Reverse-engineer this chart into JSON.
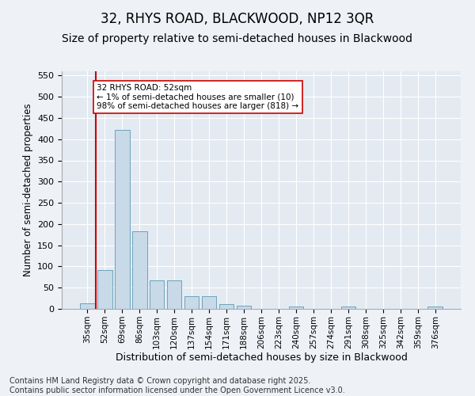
{
  "title": "32, RHYS ROAD, BLACKWOOD, NP12 3QR",
  "subtitle": "Size of property relative to semi-detached houses in Blackwood",
  "xlabel": "Distribution of semi-detached houses by size in Blackwood",
  "ylabel": "Number of semi-detached properties",
  "categories": [
    "35sqm",
    "52sqm",
    "69sqm",
    "86sqm",
    "103sqm",
    "120sqm",
    "137sqm",
    "154sqm",
    "171sqm",
    "188sqm",
    "206sqm",
    "223sqm",
    "240sqm",
    "257sqm",
    "274sqm",
    "291sqm",
    "308sqm",
    "325sqm",
    "342sqm",
    "359sqm",
    "376sqm"
  ],
  "values": [
    14,
    92,
    422,
    183,
    68,
    68,
    30,
    30,
    11,
    7,
    0,
    0,
    5,
    0,
    0,
    5,
    0,
    0,
    0,
    0,
    5
  ],
  "bar_color": "#c8d9e8",
  "bar_edge_color": "#5a9ab5",
  "vline_color": "#cc0000",
  "annotation_text": "32 RHYS ROAD: 52sqm\n← 1% of semi-detached houses are smaller (10)\n98% of semi-detached houses are larger (818) →",
  "annotation_box_color": "#ffffff",
  "annotation_box_edge_color": "#cc0000",
  "ylim": [
    0,
    560
  ],
  "yticks": [
    0,
    50,
    100,
    150,
    200,
    250,
    300,
    350,
    400,
    450,
    500,
    550
  ],
  "background_color": "#eef2f7",
  "plot_background_color": "#e4eaf2",
  "footer": "Contains HM Land Registry data © Crown copyright and database right 2025.\nContains public sector information licensed under the Open Government Licence v3.0.",
  "title_fontsize": 12,
  "subtitle_fontsize": 10,
  "xlabel_fontsize": 9,
  "ylabel_fontsize": 8.5,
  "footer_fontsize": 7
}
